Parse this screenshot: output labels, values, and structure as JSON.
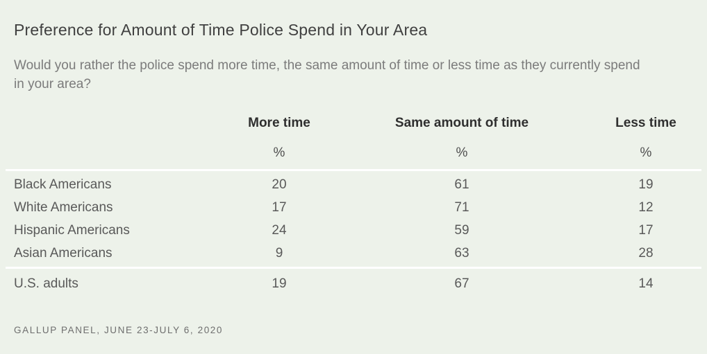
{
  "page": {
    "title": "Preference for Amount of Time Police Spend in Your Area",
    "subtitle": "Would you rather the police spend more time, the same amount of time or less time as they currently spend in your area?",
    "source": "GALLUP PANEL, JUNE 23-JULY 6, 2020"
  },
  "chart_data": {
    "type": "table",
    "title": "Preference for Amount of Time Police Spend in Your Area",
    "subtitle": "Would you rather the police spend more time, the same amount of time or less time as they currently spend in your area?",
    "unit_label": "%",
    "columns": [
      "More time",
      "Same amount of time",
      "Less time"
    ],
    "rows": [
      {
        "label": "Black Americans",
        "values": [
          "20",
          "61",
          "19"
        ]
      },
      {
        "label": "White Americans",
        "values": [
          "17",
          "71",
          "12"
        ]
      },
      {
        "label": "Hispanic Americans",
        "values": [
          "24",
          "59",
          "17"
        ]
      },
      {
        "label": "Asian Americans",
        "values": [
          "9",
          "63",
          "28"
        ]
      }
    ],
    "summary_row": {
      "label": "U.S. adults",
      "values": [
        "19",
        "67",
        "14"
      ]
    },
    "source": "GALLUP PANEL, JUNE 23-JULY 6, 2020"
  },
  "colors": {
    "background": "#edf2ea",
    "divider": "#ffffff",
    "title_text": "#404040",
    "subtitle_text": "#7b7b7b",
    "header_text": "#2f2f2f",
    "body_text": "#595959",
    "source_text": "#6e6e6e"
  }
}
